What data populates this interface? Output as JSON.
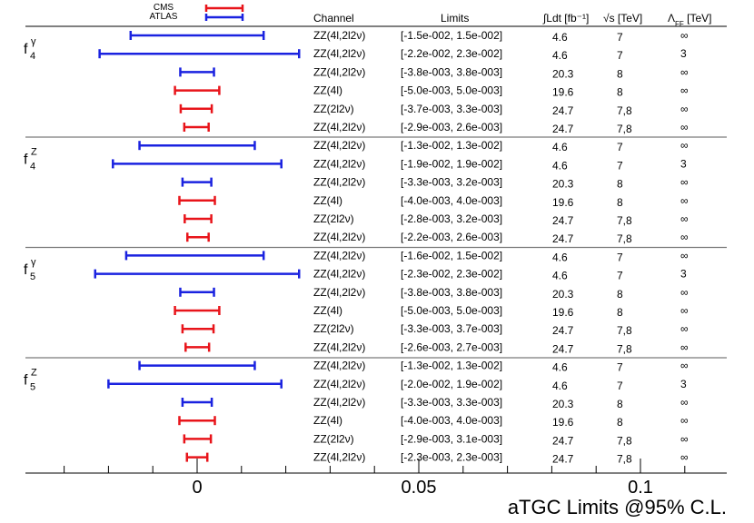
{
  "chart_data": {
    "type": "interval",
    "title": "aTGC Limits @95% C.L.",
    "legend": [
      {
        "name": "CMS",
        "color": "#e8141a"
      },
      {
        "name": "ATLAS",
        "color": "#1a22e0"
      }
    ],
    "columns": {
      "channel": "Channel",
      "limits": "Limits",
      "lumi": "∫Ldt [fb⁻¹]",
      "energy": "√s [TeV]",
      "cutoff": "Λ_FF [TeV]"
    },
    "xaxis": {
      "range": [
        -0.038,
        0.121
      ],
      "ticks": [
        0,
        0.05,
        0.1
      ],
      "tick_labels": [
        "0",
        "0.05",
        "0.1"
      ]
    },
    "groups": [
      {
        "label": "f",
        "sup": "γ",
        "sub": "4",
        "rows": [
          {
            "experiment": "ATLAS",
            "lo": -0.015,
            "hi": 0.015,
            "channel": "ZZ(4l,2l2ν)",
            "limits": "[-1.5e-002, 1.5e-002]",
            "lumi": "4.6",
            "energy": "7",
            "cutoff": "∞"
          },
          {
            "experiment": "ATLAS",
            "lo": -0.022,
            "hi": 0.023,
            "channel": "ZZ(4l,2l2ν)",
            "limits": "[-2.2e-002, 2.3e-002]",
            "lumi": "4.6",
            "energy": "7",
            "cutoff": "3"
          },
          {
            "experiment": "ATLAS",
            "lo": -0.0038,
            "hi": 0.0038,
            "channel": "ZZ(4l,2l2ν)",
            "limits": "[-3.8e-003, 3.8e-003]",
            "lumi": "20.3",
            "energy": "8",
            "cutoff": "∞"
          },
          {
            "experiment": "CMS",
            "lo": -0.005,
            "hi": 0.005,
            "channel": "ZZ(4l)",
            "limits": "[-5.0e-003, 5.0e-003]",
            "lumi": "19.6",
            "energy": "8",
            "cutoff": "∞"
          },
          {
            "experiment": "CMS",
            "lo": -0.0037,
            "hi": 0.0033,
            "channel": "ZZ(2l2ν)",
            "limits": "[-3.7e-003, 3.3e-003]",
            "lumi": "24.7",
            "energy": "7,8",
            "cutoff": "∞"
          },
          {
            "experiment": "CMS",
            "lo": -0.0029,
            "hi": 0.0026,
            "channel": "ZZ(4l,2l2ν)",
            "limits": "[-2.9e-003, 2.6e-003]",
            "lumi": "24.7",
            "energy": "7,8",
            "cutoff": "∞"
          }
        ]
      },
      {
        "label": "f",
        "sup": "Z",
        "sub": "4",
        "rows": [
          {
            "experiment": "ATLAS",
            "lo": -0.013,
            "hi": 0.013,
            "channel": "ZZ(4l,2l2ν)",
            "limits": "[-1.3e-002, 1.3e-002]",
            "lumi": "4.6",
            "energy": "7",
            "cutoff": "∞"
          },
          {
            "experiment": "ATLAS",
            "lo": -0.019,
            "hi": 0.019,
            "channel": "ZZ(4l,2l2ν)",
            "limits": "[-1.9e-002, 1.9e-002]",
            "lumi": "4.6",
            "energy": "7",
            "cutoff": "3"
          },
          {
            "experiment": "ATLAS",
            "lo": -0.0033,
            "hi": 0.0032,
            "channel": "ZZ(4l,2l2ν)",
            "limits": "[-3.3e-003, 3.2e-003]",
            "lumi": "20.3",
            "energy": "8",
            "cutoff": "∞"
          },
          {
            "experiment": "CMS",
            "lo": -0.004,
            "hi": 0.004,
            "channel": "ZZ(4l)",
            "limits": "[-4.0e-003, 4.0e-003]",
            "lumi": "19.6",
            "energy": "8",
            "cutoff": "∞"
          },
          {
            "experiment": "CMS",
            "lo": -0.0028,
            "hi": 0.0032,
            "channel": "ZZ(2l2ν)",
            "limits": "[-2.8e-003, 3.2e-003]",
            "lumi": "24.7",
            "energy": "7,8",
            "cutoff": "∞"
          },
          {
            "experiment": "CMS",
            "lo": -0.0022,
            "hi": 0.0026,
            "channel": "ZZ(4l,2l2ν)",
            "limits": "[-2.2e-003, 2.6e-003]",
            "lumi": "24.7",
            "energy": "7,8",
            "cutoff": "∞"
          }
        ]
      },
      {
        "label": "f",
        "sup": "γ",
        "sub": "5",
        "rows": [
          {
            "experiment": "ATLAS",
            "lo": -0.016,
            "hi": 0.015,
            "channel": "ZZ(4l,2l2ν)",
            "limits": "[-1.6e-002, 1.5e-002]",
            "lumi": "4.6",
            "energy": "7",
            "cutoff": "∞"
          },
          {
            "experiment": "ATLAS",
            "lo": -0.023,
            "hi": 0.023,
            "channel": "ZZ(4l,2l2ν)",
            "limits": "[-2.3e-002, 2.3e-002]",
            "lumi": "4.6",
            "energy": "7",
            "cutoff": "3"
          },
          {
            "experiment": "ATLAS",
            "lo": -0.0038,
            "hi": 0.0038,
            "channel": "ZZ(4l,2l2ν)",
            "limits": "[-3.8e-003, 3.8e-003]",
            "lumi": "20.3",
            "energy": "8",
            "cutoff": "∞"
          },
          {
            "experiment": "CMS",
            "lo": -0.005,
            "hi": 0.005,
            "channel": "ZZ(4l)",
            "limits": "[-5.0e-003, 5.0e-003]",
            "lumi": "19.6",
            "energy": "8",
            "cutoff": "∞"
          },
          {
            "experiment": "CMS",
            "lo": -0.0033,
            "hi": 0.0037,
            "channel": "ZZ(2l2ν)",
            "limits": "[-3.3e-003, 3.7e-003]",
            "lumi": "24.7",
            "energy": "7,8",
            "cutoff": "∞"
          },
          {
            "experiment": "CMS",
            "lo": -0.0026,
            "hi": 0.0027,
            "channel": "ZZ(4l,2l2ν)",
            "limits": "[-2.6e-003, 2.7e-003]",
            "lumi": "24.7",
            "energy": "7,8",
            "cutoff": "∞"
          }
        ]
      },
      {
        "label": "f",
        "sup": "Z",
        "sub": "5",
        "rows": [
          {
            "experiment": "ATLAS",
            "lo": -0.013,
            "hi": 0.013,
            "channel": "ZZ(4l,2l2ν)",
            "limits": "[-1.3e-002, 1.3e-002]",
            "lumi": "4.6",
            "energy": "7",
            "cutoff": "∞"
          },
          {
            "experiment": "ATLAS",
            "lo": -0.02,
            "hi": 0.019,
            "channel": "ZZ(4l,2l2ν)",
            "limits": "[-2.0e-002, 1.9e-002]",
            "lumi": "4.6",
            "energy": "7",
            "cutoff": "3"
          },
          {
            "experiment": "ATLAS",
            "lo": -0.0033,
            "hi": 0.0033,
            "channel": "ZZ(4l,2l2ν)",
            "limits": "[-3.3e-003, 3.3e-003]",
            "lumi": "20.3",
            "energy": "8",
            "cutoff": "∞"
          },
          {
            "experiment": "CMS",
            "lo": -0.004,
            "hi": 0.004,
            "channel": "ZZ(4l)",
            "limits": "[-4.0e-003, 4.0e-003]",
            "lumi": "19.6",
            "energy": "8",
            "cutoff": "∞"
          },
          {
            "experiment": "CMS",
            "lo": -0.0029,
            "hi": 0.0031,
            "channel": "ZZ(2l2ν)",
            "limits": "[-2.9e-003, 3.1e-003]",
            "lumi": "24.7",
            "energy": "7,8",
            "cutoff": "∞"
          },
          {
            "experiment": "CMS",
            "lo": -0.0023,
            "hi": 0.0023,
            "channel": "ZZ(4l,2l2ν)",
            "limits": "[-2.3e-003, 2.3e-003]",
            "lumi": "24.7",
            "energy": "7,8",
            "cutoff": "∞"
          }
        ]
      }
    ]
  }
}
